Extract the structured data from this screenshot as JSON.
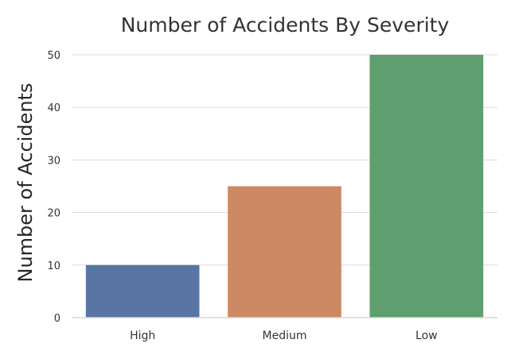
{
  "chart_data": {
    "type": "bar",
    "title": "Number of Accidents By Severity",
    "xlabel": "",
    "ylabel": "Number of Accidents",
    "categories": [
      "High",
      "Medium",
      "Low"
    ],
    "values": [
      10,
      25,
      50
    ],
    "colors": [
      "#5875a4",
      "#cc8963",
      "#5f9e6e"
    ],
    "ylim": [
      0,
      50
    ],
    "yticks": [
      0,
      10,
      20,
      30,
      40,
      50
    ],
    "grid": true,
    "grid_color": "#d9d9d9"
  }
}
